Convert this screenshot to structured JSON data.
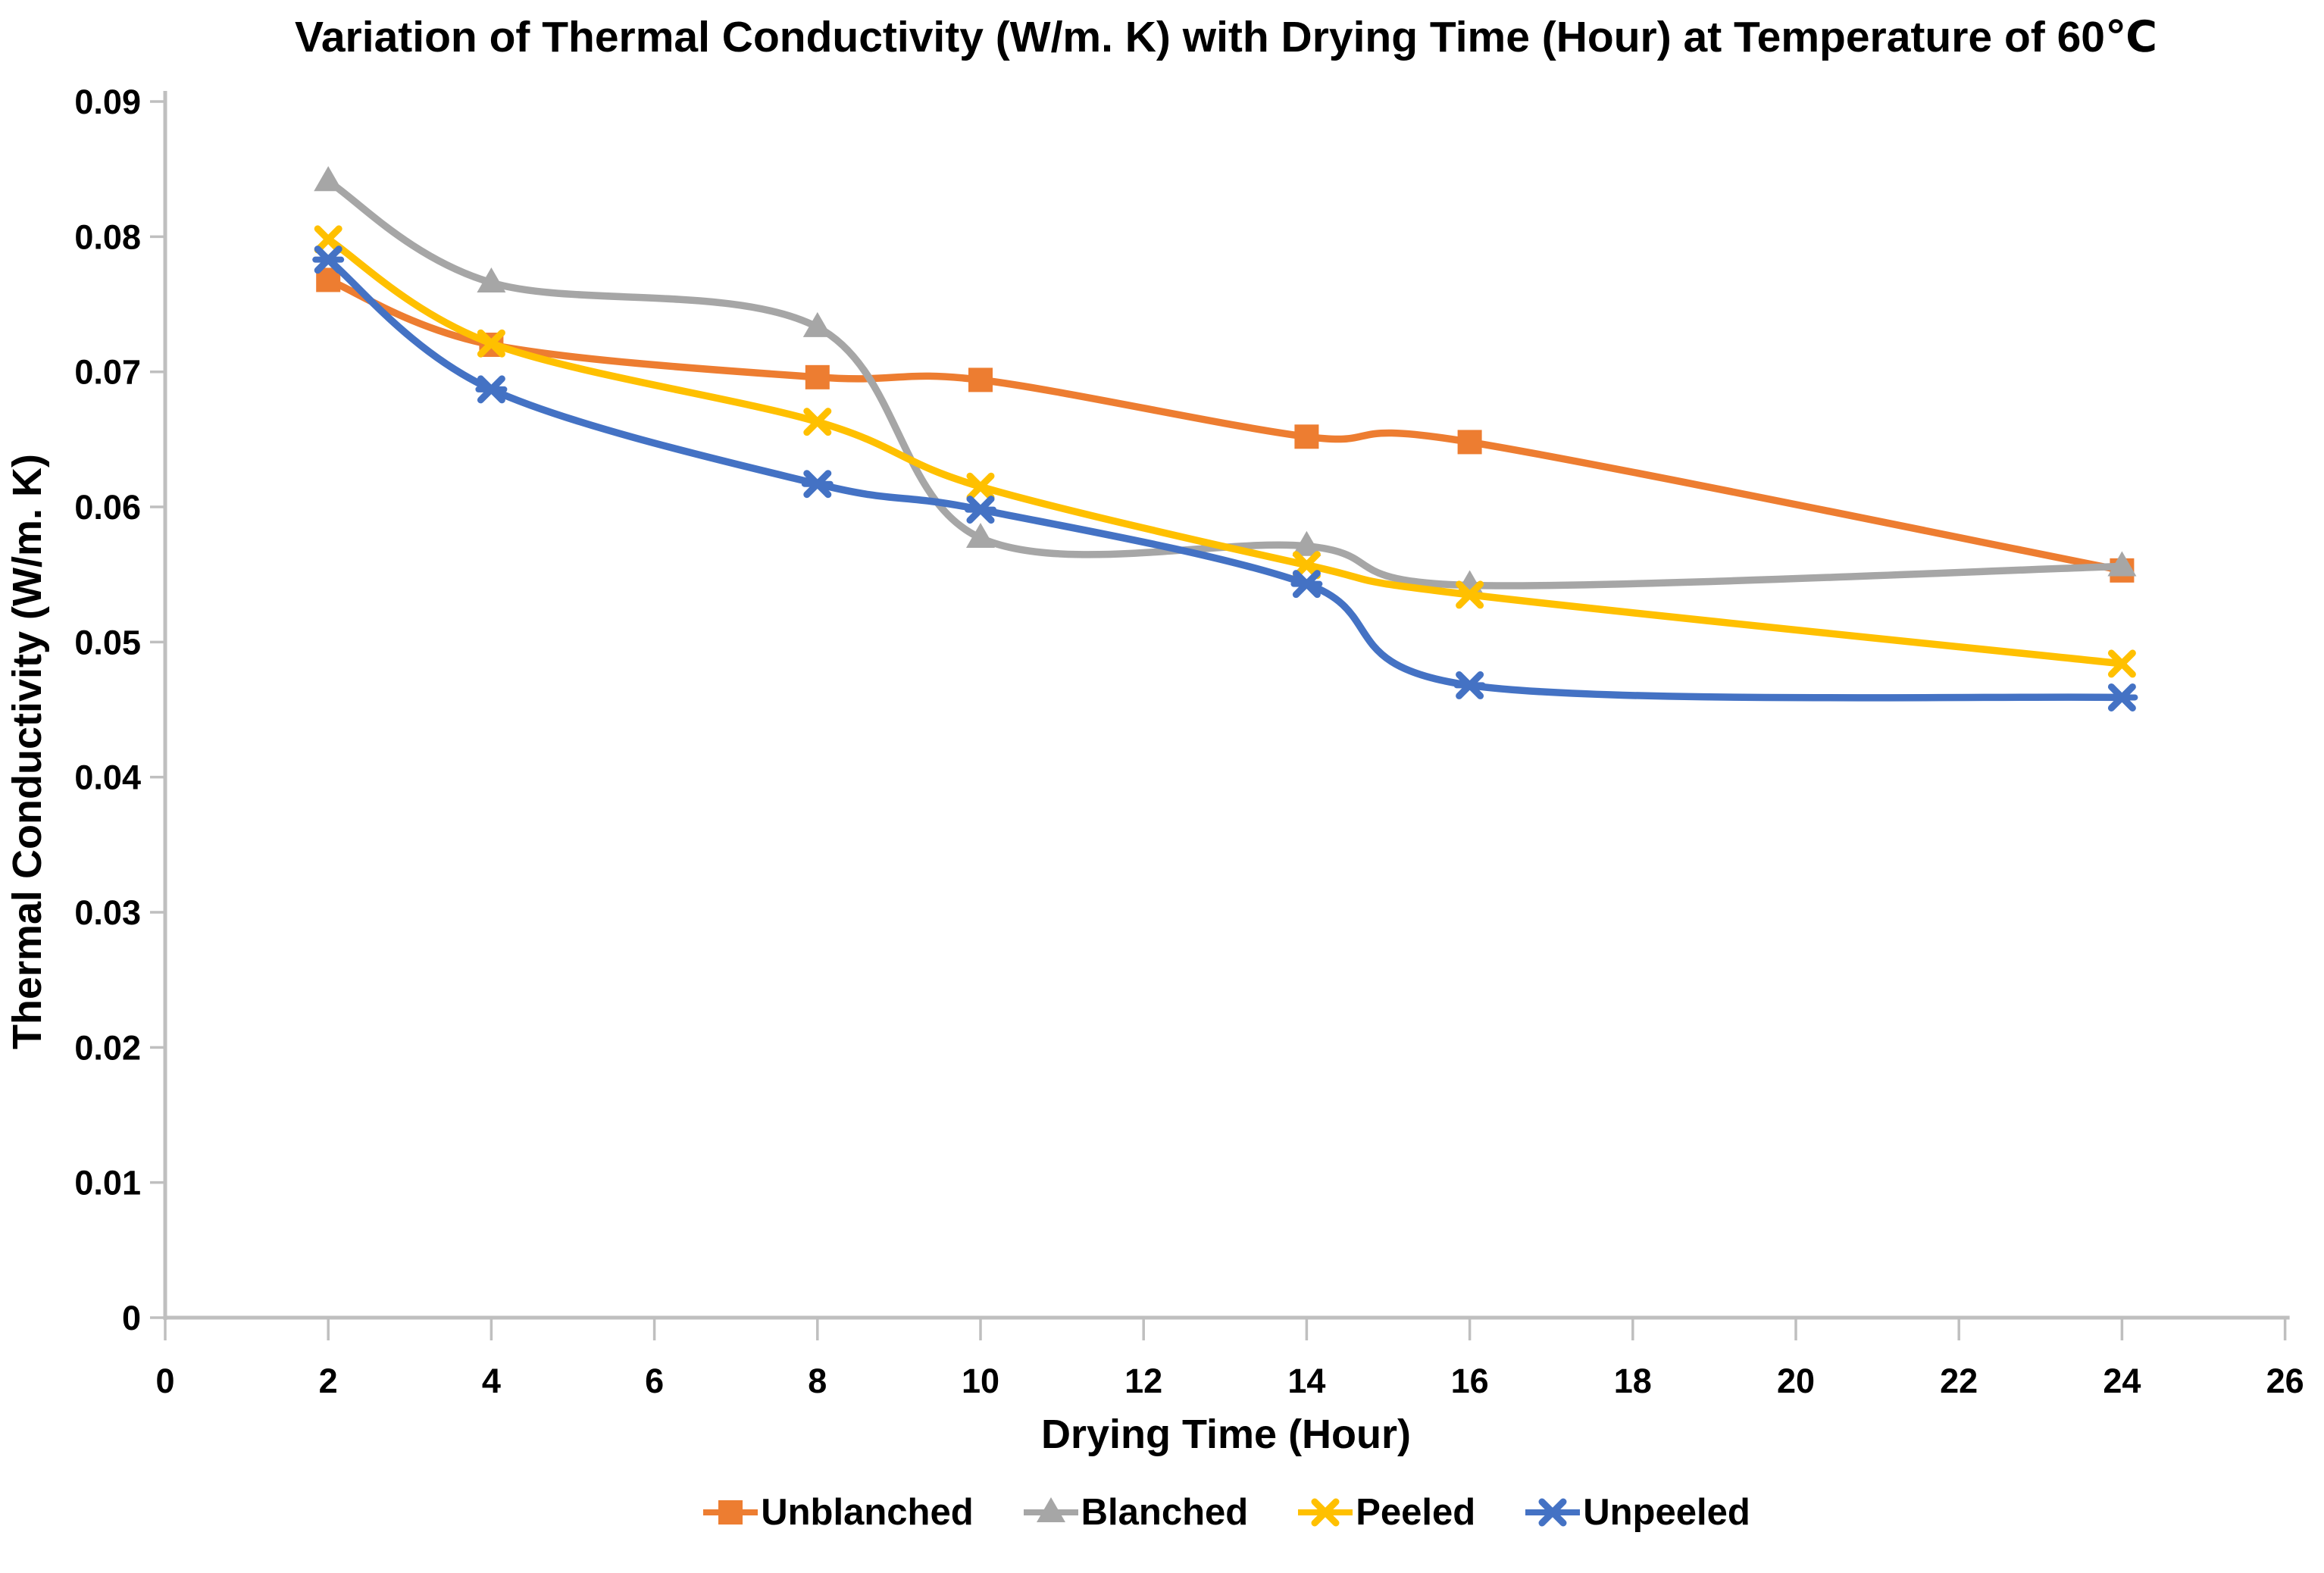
{
  "chart_data": {
    "type": "line",
    "title": "Variation of Thermal Conductivity (W/m. K) with Drying Time (Hour) at Temperature of 60℃",
    "xlabel": "Drying Time (Hour)",
    "ylabel": "Thermal Conductivity (W/m. K)",
    "xlim": [
      0,
      26
    ],
    "ylim": [
      0,
      0.09
    ],
    "x_tick_labels": [
      "0",
      "2",
      "4",
      "6",
      "8",
      "10",
      "12",
      "14",
      "16",
      "18",
      "20",
      "22",
      "24",
      "26"
    ],
    "y_tick_labels": [
      "0",
      "0.01",
      "0.02",
      "0.03",
      "0.04",
      "0.05",
      "0.06",
      "0.07",
      "0.08",
      "0.09"
    ],
    "grid": false,
    "legend_position": "bottom",
    "line_style": "smooth",
    "axis_color": "#BFBFBF",
    "text_color": "#000000",
    "x": [
      2,
      4,
      8,
      10,
      14,
      16,
      24
    ],
    "series": [
      {
        "name": "Unblanched",
        "color": "#ED7D31",
        "marker": "square",
        "values": [
          0.0768,
          0.072,
          0.0696,
          0.0694,
          0.0652,
          0.0648,
          0.0553
        ]
      },
      {
        "name": "Blanched",
        "color": "#A6A6A6",
        "marker": "triangle",
        "values": [
          0.0841,
          0.0766,
          0.0733,
          0.0577,
          0.0571,
          0.0542,
          0.0556
        ]
      },
      {
        "name": "Peeled",
        "color": "#FFC000",
        "marker": "x",
        "values": [
          0.0798,
          0.0721,
          0.0663,
          0.0615,
          0.0557,
          0.0535,
          0.0484
        ]
      },
      {
        "name": "Unpeeled",
        "color": "#4472C4",
        "marker": "x-star",
        "values": [
          0.0783,
          0.0687,
          0.0617,
          0.0598,
          0.0543,
          0.0468,
          0.0459
        ]
      }
    ]
  }
}
